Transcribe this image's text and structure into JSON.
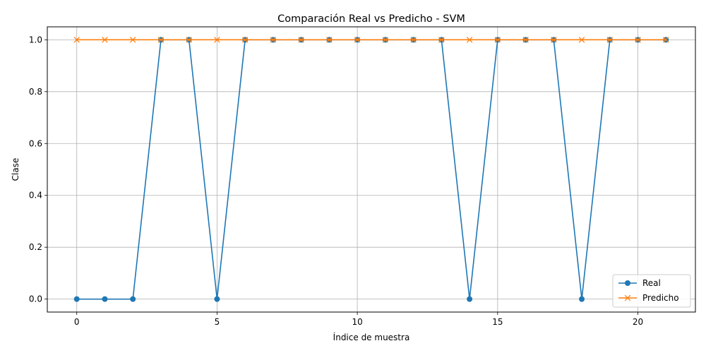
{
  "chart_data": {
    "type": "line",
    "title": "Comparación Real vs Predicho - SVM",
    "xlabel": "Índice de muestra",
    "ylabel": "Clase",
    "xlim": [
      -1.05,
      22.05
    ],
    "ylim": [
      -0.05,
      1.05
    ],
    "xticks": [
      0,
      5,
      10,
      15,
      20
    ],
    "xtick_labels": [
      "0",
      "5",
      "10",
      "15",
      "20"
    ],
    "yticks": [
      0.0,
      0.2,
      0.4,
      0.6,
      0.8,
      1.0
    ],
    "ytick_labels": [
      "0.0",
      "0.2",
      "0.4",
      "0.6",
      "0.8",
      "1.0"
    ],
    "grid": true,
    "legend_position": "lower-right",
    "x": [
      0,
      1,
      2,
      3,
      4,
      5,
      6,
      7,
      8,
      9,
      10,
      11,
      12,
      13,
      14,
      15,
      16,
      17,
      18,
      19,
      20,
      21
    ],
    "series": [
      {
        "name": "Real",
        "marker": "circle",
        "color": "#1f77b4",
        "values": [
          0,
          0,
          0,
          1,
          1,
          0,
          1,
          1,
          1,
          1,
          1,
          1,
          1,
          1,
          0,
          1,
          1,
          1,
          0,
          1,
          1,
          1
        ]
      },
      {
        "name": "Predicho",
        "marker": "x",
        "color": "#ff7f0e",
        "values": [
          1,
          1,
          1,
          1,
          1,
          1,
          1,
          1,
          1,
          1,
          1,
          1,
          1,
          1,
          1,
          1,
          1,
          1,
          1,
          1,
          1,
          1
        ]
      }
    ]
  }
}
